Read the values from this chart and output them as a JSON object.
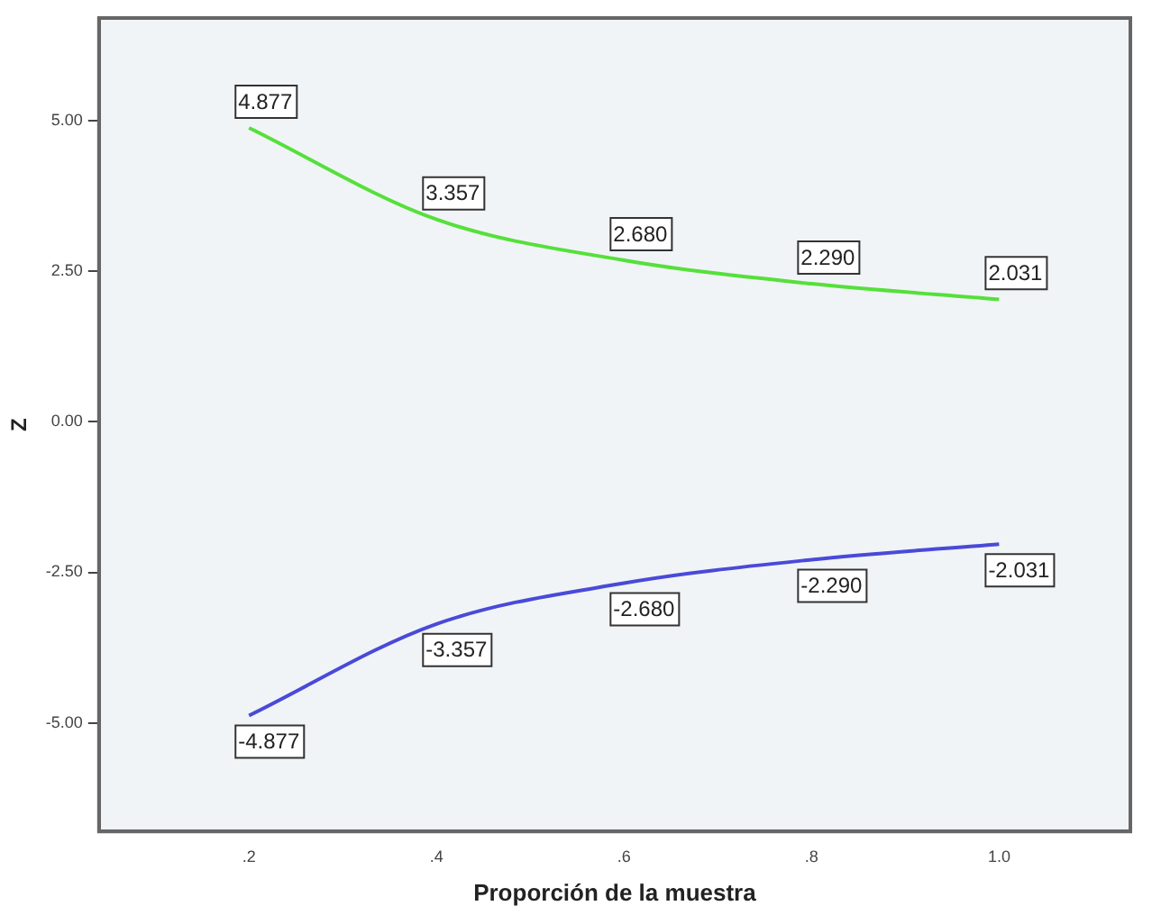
{
  "chart_data": {
    "type": "line",
    "xlabel": "Proporción de la muestra",
    "ylabel": "Z",
    "x": [
      0.2,
      0.4,
      0.6,
      0.8,
      1.0
    ],
    "series": [
      {
        "color": "#55e03a",
        "values": [
          4.877,
          3.357,
          2.68,
          2.29,
          2.031
        ],
        "value_labels": [
          "4.877",
          "3.357",
          "2.680",
          "2.290",
          "2.031"
        ]
      },
      {
        "color": "#4a4ad8",
        "values": [
          -4.877,
          -3.357,
          -2.68,
          -2.29,
          -2.031
        ],
        "value_labels": [
          "-4.877",
          "-3.357",
          "-2.680",
          "-2.290",
          "-2.031"
        ]
      }
    ],
    "xlim": [
      0.04,
      1.14
    ],
    "xticks": [
      {
        "value": 0.2,
        "label": ".2"
      },
      {
        "value": 0.4,
        "label": ".4"
      },
      {
        "value": 0.6,
        "label": ".6"
      },
      {
        "value": 0.8,
        "label": ".8"
      },
      {
        "value": 1.0,
        "label": "1.0"
      }
    ],
    "ylim": [
      -6.8,
      6.7
    ],
    "yticks": [
      {
        "value": -5,
        "label": "-5.00"
      },
      {
        "value": -2.5,
        "label": "-2.50"
      },
      {
        "value": 0,
        "label": "0.00"
      },
      {
        "value": 2.5,
        "label": "2.50"
      },
      {
        "value": 5,
        "label": "5.00"
      }
    ],
    "grid": false,
    "legend": false,
    "marker": "none",
    "line_style": "solid"
  }
}
